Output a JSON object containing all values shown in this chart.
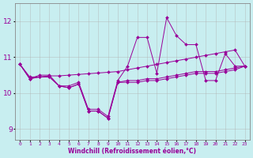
{
  "xlabel": "Windchill (Refroidissement éolien,°C)",
  "background_color": "#c8eef0",
  "grid_color": "#b0b0b0",
  "line_color": "#990099",
  "xlim": [
    -0.5,
    23.5
  ],
  "ylim": [
    8.7,
    12.5
  ],
  "yticks": [
    9,
    10,
    11,
    12
  ],
  "xtick_labels": [
    "0",
    "1",
    "2",
    "3",
    "4",
    "5",
    "6",
    "7",
    "8",
    "9",
    "10",
    "11",
    "12",
    "13",
    "14",
    "15",
    "16",
    "17",
    "18",
    "19",
    "20",
    "21",
    "22",
    "23"
  ],
  "series": [
    [
      10.8,
      10.4,
      10.5,
      10.5,
      10.2,
      10.2,
      10.3,
      9.55,
      9.55,
      9.35,
      10.35,
      10.75,
      11.55,
      11.55,
      10.55,
      12.1,
      11.6,
      11.35,
      11.35,
      10.35,
      10.35,
      11.1,
      10.75,
      10.75
    ],
    [
      10.8,
      10.4,
      10.45,
      10.45,
      10.2,
      10.15,
      10.25,
      9.5,
      9.5,
      9.3,
      10.3,
      10.3,
      10.3,
      10.35,
      10.35,
      10.4,
      10.45,
      10.5,
      10.55,
      10.55,
      10.55,
      10.6,
      10.65,
      10.75
    ],
    [
      10.8,
      10.4,
      10.45,
      10.45,
      10.2,
      10.15,
      10.25,
      9.5,
      9.5,
      9.3,
      10.3,
      10.35,
      10.35,
      10.4,
      10.4,
      10.45,
      10.5,
      10.55,
      10.6,
      10.6,
      10.6,
      10.65,
      10.7,
      10.75
    ],
    [
      10.8,
      10.45,
      10.45,
      10.48,
      10.48,
      10.5,
      10.52,
      10.54,
      10.56,
      10.58,
      10.6,
      10.65,
      10.7,
      10.75,
      10.8,
      10.85,
      10.9,
      10.95,
      11.0,
      11.05,
      11.1,
      11.15,
      11.2,
      10.75
    ]
  ]
}
